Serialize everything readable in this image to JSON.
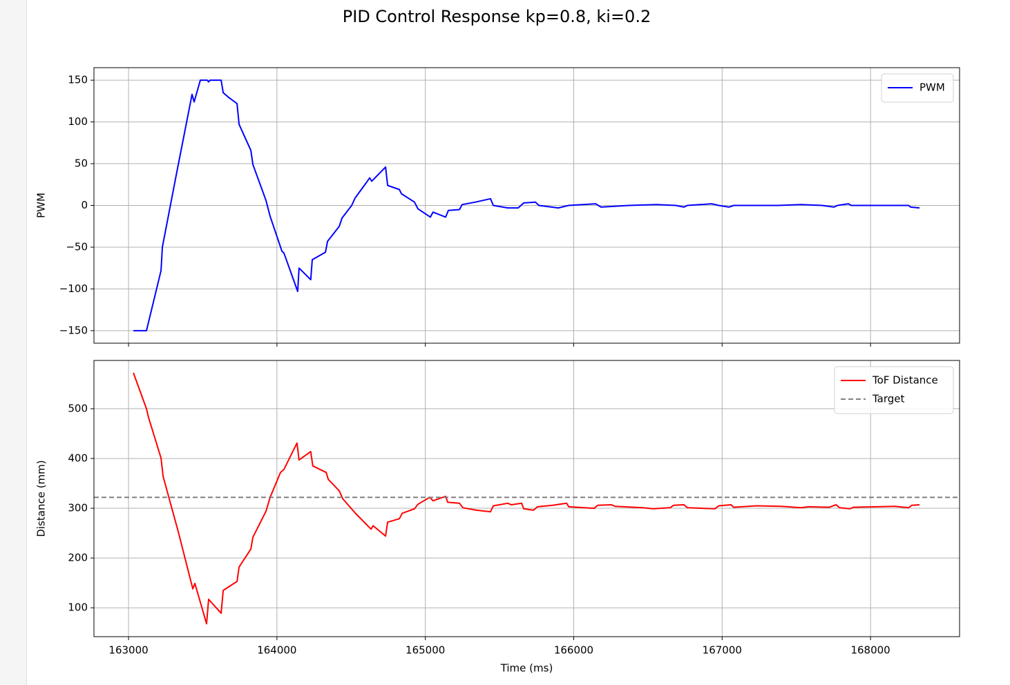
{
  "title": "PID Control Response kp=0.8, ki=0.2",
  "chart_data": [
    {
      "type": "line",
      "ylabel": "PWM",
      "sharex": true,
      "grid": true,
      "legend": "upper right",
      "xlim": [
        162767,
        168600
      ],
      "ylim": [
        -165,
        165
      ],
      "yticks": [
        {
          "value": -150,
          "label": "−150"
        },
        {
          "value": -100,
          "label": "−100"
        },
        {
          "value": -50,
          "label": "−50"
        },
        0,
        50,
        100,
        150
      ],
      "series": [
        {
          "name": "PWM",
          "color": "#0000ff",
          "x": [
            163033,
            163121,
            163219,
            163228,
            163321,
            163428,
            163442,
            163484,
            163530,
            163540,
            163549,
            163624,
            163638,
            163670,
            163731,
            163745,
            163824,
            163838,
            163926,
            163954,
            164034,
            164047,
            164140,
            164149,
            164228,
            164238,
            164327,
            164341,
            164420,
            164439,
            164504,
            164527,
            164601,
            164625,
            164639,
            164732,
            164746,
            164825,
            164839,
            164927,
            164950,
            165034,
            165052,
            165137,
            165155,
            165230,
            165248,
            165337,
            165439,
            165458,
            165556,
            165626,
            165663,
            165742,
            165765,
            165896,
            165966,
            166147,
            166184,
            166371,
            166557,
            166687,
            166743,
            166766,
            166930,
            166977,
            167046,
            167078,
            167372,
            167534,
            167674,
            167753,
            167777,
            167851,
            167870,
            168256,
            168270,
            168330
          ],
          "values": [
            -150,
            -150,
            -78,
            -50,
            36,
            133,
            124,
            150,
            150,
            148,
            150,
            150,
            135,
            130,
            122,
            97,
            66,
            49,
            6,
            -13,
            -55,
            -57,
            -103,
            -75,
            -89,
            -65,
            -56,
            -43,
            -25,
            -15,
            0,
            9,
            27,
            33,
            29,
            46,
            24,
            19,
            14,
            4,
            -4,
            -14,
            -8,
            -14,
            -6,
            -5,
            1,
            4,
            8,
            0,
            -3,
            -3,
            3,
            4,
            0,
            -3,
            0,
            2,
            -2,
            0,
            1,
            0,
            -2,
            0,
            2,
            0,
            -2,
            0,
            0,
            1,
            0,
            -2,
            0,
            2,
            0,
            0,
            -2,
            -3
          ]
        }
      ]
    },
    {
      "type": "line",
      "xlabel": "Time (ms)",
      "ylabel": "Distance (mm)",
      "grid": true,
      "legend": "upper right",
      "xlim": [
        162767,
        168600
      ],
      "ylim": [
        42,
        597
      ],
      "xticks": [
        163000,
        164000,
        165000,
        166000,
        167000,
        168000
      ],
      "yticks": [
        100,
        200,
        300,
        400,
        500
      ],
      "series": [
        {
          "name": "ToF Distance",
          "color": "#ff0000",
          "x": [
            163033,
            163121,
            163135,
            163219,
            163233,
            163335,
            163433,
            163447,
            163526,
            163540,
            163624,
            163638,
            163731,
            163745,
            163824,
            163838,
            163926,
            163954,
            164024,
            164047,
            164135,
            164149,
            164228,
            164242,
            164332,
            164346,
            164420,
            164444,
            164532,
            164555,
            164634,
            164648,
            164732,
            164746,
            164825,
            164844,
            164927,
            164950,
            165030,
            165052,
            165137,
            165151,
            165230,
            165253,
            165346,
            165439,
            165458,
            165556,
            165579,
            165649,
            165663,
            165728,
            165756,
            165858,
            165952,
            165966,
            166138,
            166161,
            166254,
            166278,
            166464,
            166534,
            166650,
            166673,
            166743,
            166766,
            166952,
            166977,
            167060,
            167078,
            167232,
            167395,
            167534,
            167581,
            167721,
            167768,
            167791,
            167861,
            167884,
            168047,
            168163,
            168256,
            168279,
            168330
          ],
          "values": [
            572,
            500,
            482,
            401,
            364,
            253,
            138,
            149,
            68,
            117,
            89,
            135,
            153,
            182,
            218,
            242,
            294,
            322,
            372,
            378,
            431,
            397,
            414,
            385,
            372,
            358,
            335,
            319,
            289,
            282,
            258,
            265,
            244,
            272,
            279,
            290,
            299,
            308,
            322,
            315,
            324,
            312,
            310,
            301,
            296,
            293,
            305,
            310,
            307,
            310,
            299,
            296,
            303,
            306,
            310,
            303,
            300,
            306,
            307,
            304,
            301,
            299,
            301,
            306,
            307,
            301,
            299,
            305,
            307,
            302,
            305,
            304,
            301,
            303,
            302,
            307,
            301,
            299,
            302,
            303,
            304,
            301,
            306,
            307
          ]
        },
        {
          "name": "Target",
          "color": "#808080",
          "dash": true,
          "hline": 322
        }
      ]
    }
  ]
}
